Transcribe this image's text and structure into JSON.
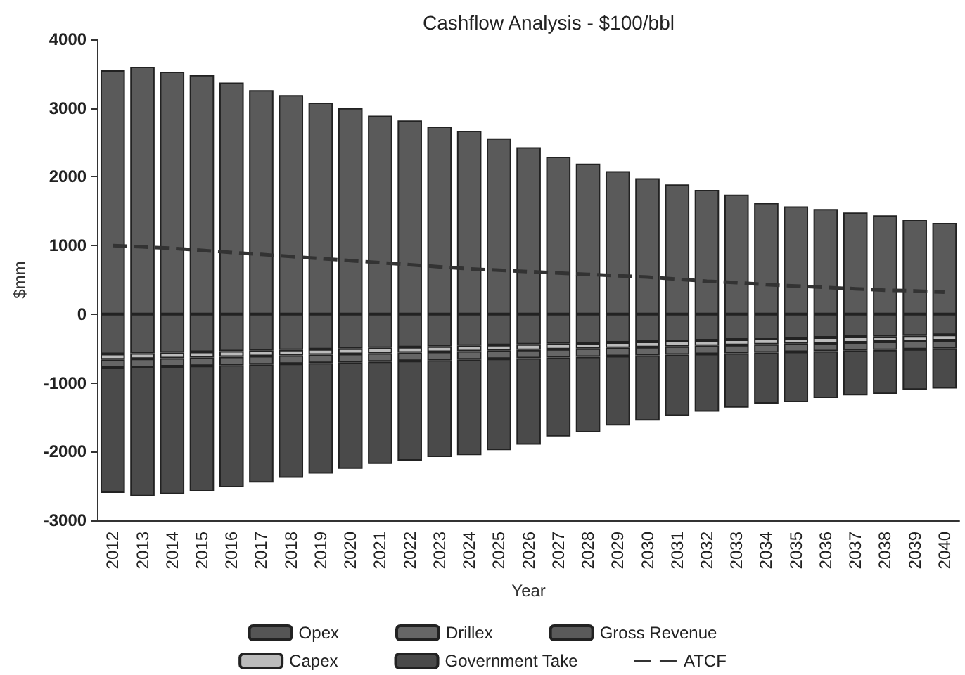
{
  "chart_data": {
    "type": "bar",
    "title": "Cashflow Analysis - $100/bbl",
    "xlabel": "Year",
    "ylabel": "$mm",
    "categories": [
      "2012",
      "2013",
      "2014",
      "2015",
      "2016",
      "2017",
      "2018",
      "2019",
      "2020",
      "2021",
      "2022",
      "2023",
      "2024",
      "2025",
      "2026",
      "2027",
      "2028",
      "2029",
      "2030",
      "2031",
      "2032",
      "2033",
      "2034",
      "2035",
      "2036",
      "2037",
      "2038",
      "2039",
      "2040"
    ],
    "stacked": true,
    "series": [
      {
        "name": "Opex",
        "color": "#555555",
        "values": [
          -580,
          -570,
          -560,
          -550,
          -540,
          -530,
          -520,
          -510,
          -500,
          -490,
          -480,
          -470,
          -460,
          -450,
          -440,
          -430,
          -420,
          -410,
          -400,
          -390,
          -380,
          -370,
          -360,
          -350,
          -340,
          -330,
          -320,
          -310,
          -300
        ]
      },
      {
        "name": "Capex",
        "color": "#bbbbbb",
        "values": [
          -80,
          -80,
          -80,
          -80,
          -80,
          -80,
          -80,
          -80,
          -80,
          -80,
          -80,
          -80,
          -80,
          -80,
          -80,
          -80,
          -80,
          -80,
          -80,
          -80,
          -80,
          -80,
          -80,
          -80,
          -80,
          -80,
          -80,
          -80,
          -80
        ]
      },
      {
        "name": "Drillex",
        "color": "#666666",
        "values": [
          -120,
          -120,
          -120,
          -120,
          -120,
          -120,
          -120,
          -120,
          -120,
          -120,
          -120,
          -120,
          -120,
          -120,
          -120,
          -120,
          -120,
          -120,
          -120,
          -120,
          -120,
          -120,
          -120,
          -120,
          -120,
          -120,
          -120,
          -120,
          -120
        ]
      },
      {
        "name": "Government Take",
        "color": "#4a4a4a",
        "values": [
          -1820,
          -1880,
          -1860,
          -1830,
          -1780,
          -1720,
          -1660,
          -1610,
          -1550,
          -1490,
          -1450,
          -1410,
          -1390,
          -1330,
          -1260,
          -1150,
          -1100,
          -1010,
          -950,
          -890,
          -840,
          -790,
          -740,
          -730,
          -680,
          -650,
          -640,
          -590,
          -580
        ]
      },
      {
        "name": "Gross Revenue",
        "color": "#5a5a5a",
        "values": [
          3550,
          3600,
          3530,
          3480,
          3370,
          3260,
          3190,
          3080,
          3000,
          2890,
          2820,
          2730,
          2670,
          2560,
          2430,
          2290,
          2190,
          2080,
          1980,
          1890,
          1810,
          1740,
          1620,
          1570,
          1530,
          1480,
          1440,
          1370,
          1330
        ]
      },
      {
        "name": "ATCF",
        "type": "line",
        "color": "#333333",
        "line_style": "dashed",
        "values": [
          1000,
          980,
          960,
          930,
          900,
          870,
          840,
          810,
          780,
          750,
          720,
          690,
          660,
          640,
          620,
          600,
          580,
          560,
          540,
          510,
          480,
          460,
          430,
          410,
          390,
          370,
          350,
          340,
          320
        ]
      }
    ],
    "ylim": [
      -3000,
      4000
    ],
    "yticks": [
      -3000,
      -2000,
      -1000,
      0,
      1000,
      2000,
      3000,
      4000
    ],
    "grid": false,
    "legend": "bottom",
    "marker": "none"
  }
}
